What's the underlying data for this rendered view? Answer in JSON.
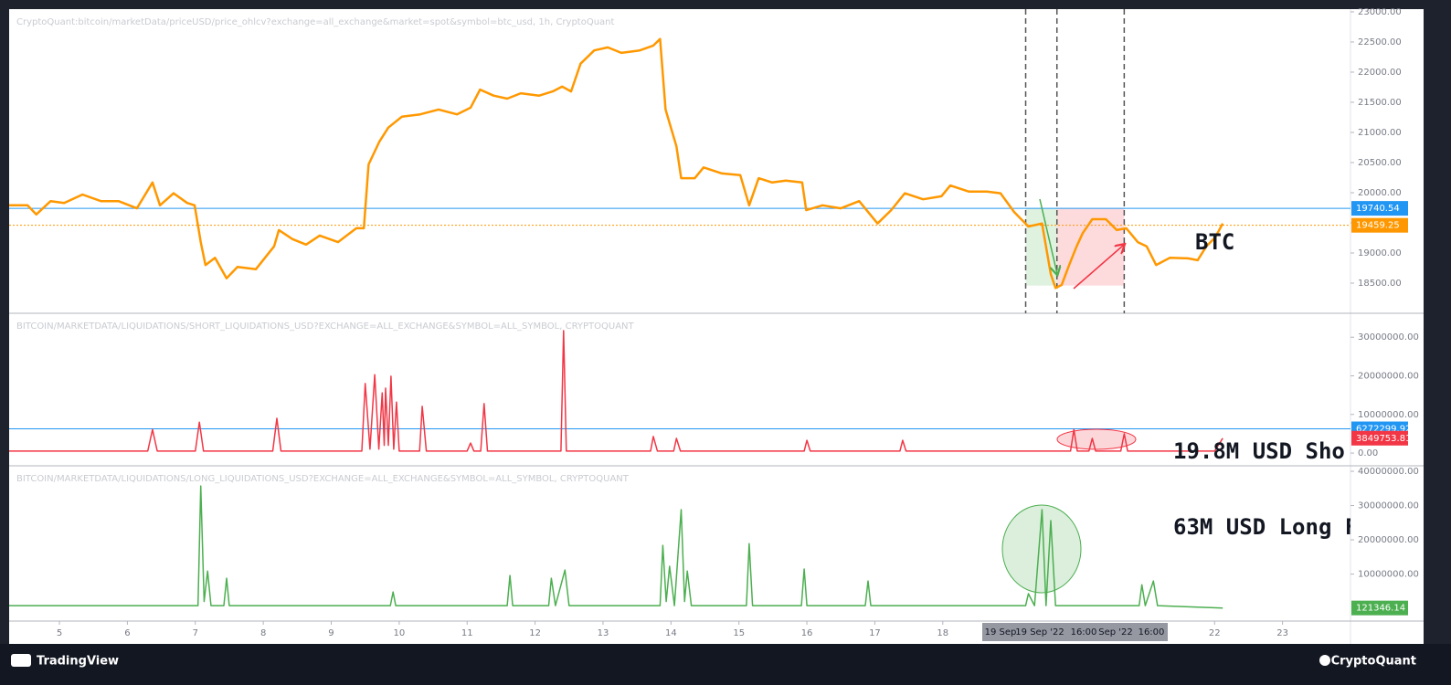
{
  "chart_data": [
    {
      "type": "line",
      "title": "CryptoQuant:bitcoin/marketData/priceUSD/price_ohlcv?exchange=all_exchange&market=spot&symbol=btc_usd, 1h, CryptoQuant",
      "annotation": "BTC",
      "xlim": [
        4.26,
        24
      ],
      "ylim": [
        18000,
        23045
      ],
      "yticks": [
        {
          "value": 18500,
          "label": "18500.00"
        },
        {
          "value": 19000,
          "label": "19000.00"
        },
        {
          "value": 19500,
          "label": "19500.00"
        },
        {
          "value": 20000,
          "label": "20000.00"
        },
        {
          "value": 20500,
          "label": "20500.00"
        },
        {
          "value": 21000,
          "label": "21000.00"
        },
        {
          "value": 21500,
          "label": "21500.00"
        },
        {
          "value": 22000,
          "label": "22000.00"
        },
        {
          "value": 22500,
          "label": "22500.00"
        },
        {
          "value": 23000,
          "label": "23000.00"
        }
      ],
      "vlines": [
        19.22,
        19.68,
        20.67
      ],
      "price_lines": [
        {
          "value": 19740.54,
          "color": "#2196f3",
          "style": "solid"
        },
        {
          "value": 19459.25,
          "color": "#ff9800",
          "style": "dotted"
        }
      ],
      "x": [
        4.26,
        4.53,
        4.66,
        4.87,
        5.07,
        5.34,
        5.61,
        5.87,
        6.14,
        6.37,
        6.48,
        6.68,
        6.88,
        6.99,
        7.08,
        7.15,
        7.29,
        7.46,
        7.62,
        7.89,
        8.16,
        8.23,
        8.43,
        8.63,
        8.83,
        9.1,
        9.37,
        9.48,
        9.55,
        9.71,
        9.84,
        10.04,
        10.31,
        10.58,
        10.85,
        11.05,
        11.19,
        11.39,
        11.59,
        11.79,
        12.06,
        12.26,
        12.4,
        12.53,
        12.67,
        12.87,
        13.07,
        13.27,
        13.54,
        13.74,
        13.84,
        13.92,
        14.08,
        14.15,
        14.35,
        14.48,
        14.75,
        15.02,
        15.15,
        15.29,
        15.49,
        15.69,
        15.93,
        15.99,
        16.23,
        16.5,
        16.77,
        17.04,
        17.24,
        17.44,
        17.71,
        17.98,
        18.11,
        18.38,
        18.65,
        18.85,
        19.05,
        19.26,
        19.46,
        19.59,
        19.66,
        19.75,
        19.86,
        19.97,
        20.06,
        20.2,
        20.4,
        20.56,
        20.7,
        20.87,
        21.0,
        21.14,
        21.34,
        21.61,
        21.75,
        21.88,
        22.01,
        22.12
      ],
      "series": [
        {
          "name": "BTC",
          "color": "#ff9800",
          "values": [
            19790,
            19790,
            19640,
            19860,
            19830,
            19970,
            19860,
            19860,
            19740,
            20170,
            19790,
            19990,
            19830,
            19790,
            19180,
            18800,
            18920,
            18580,
            18770,
            18730,
            19110,
            19380,
            19230,
            19140,
            19290,
            19180,
            19410,
            19410,
            20470,
            20850,
            21080,
            21260,
            21300,
            21380,
            21300,
            21410,
            21710,
            21610,
            21560,
            21650,
            21610,
            21680,
            21760,
            21680,
            22140,
            22360,
            22410,
            22320,
            22360,
            22440,
            22550,
            21380,
            20770,
            20240,
            20240,
            20420,
            20320,
            20290,
            19790,
            20240,
            20170,
            20200,
            20170,
            19710,
            19790,
            19740,
            19860,
            19490,
            19710,
            19990,
            19890,
            19940,
            20120,
            20020,
            20020,
            19990,
            19680,
            19440,
            19490,
            18650,
            18420,
            18470,
            18800,
            19110,
            19330,
            19560,
            19560,
            19380,
            19410,
            19180,
            19110,
            18800,
            18920,
            18910,
            18880,
            19110,
            19260,
            19490
          ]
        }
      ]
    },
    {
      "type": "line",
      "title": "BITCOIN/MARKETDATA/LIQUIDATIONS/SHORT_LIQUIDATIONS_USD?EXCHANGE=ALL_EXCHANGE&SYMBOL=ALL_SYMBOL, CRYPTOQUANT",
      "annotation": "19.8M USD Sho",
      "xlim": [
        4.26,
        24
      ],
      "ylim": [
        -3300000,
        36200000
      ],
      "yticks": [
        {
          "value": 0,
          "label": "0.00"
        },
        {
          "value": 10000000,
          "label": "10000000.00"
        },
        {
          "value": 20000000,
          "label": "20000000.00"
        },
        {
          "value": 30000000,
          "label": "30000000.00"
        }
      ],
      "price_lines": [
        {
          "value": 6272299.92,
          "color": "#2196f3",
          "style": "solid"
        },
        {
          "value": 3849753.81,
          "color": "#f23645",
          "style": "none"
        }
      ],
      "x": [
        4.26,
        6.3,
        6.37,
        6.44,
        7.0,
        7.06,
        7.12,
        8.14,
        8.2,
        8.26,
        9.45,
        9.5,
        9.57,
        9.64,
        9.7,
        9.75,
        9.78,
        9.8,
        9.84,
        9.88,
        9.92,
        9.96,
        10.0,
        10.3,
        10.34,
        10.4,
        11.0,
        11.05,
        11.1,
        11.2,
        11.25,
        11.3,
        12.38,
        12.42,
        12.46,
        13.7,
        13.74,
        13.8,
        14.04,
        14.08,
        14.14,
        15.96,
        16.0,
        16.05,
        17.37,
        17.41,
        17.46,
        19.88,
        19.93,
        19.98,
        20.15,
        20.2,
        20.25,
        20.62,
        20.67,
        20.72,
        22.0,
        22.12
      ],
      "series": [
        {
          "name": "Short liquidations",
          "color": "#f23645",
          "values": [
            500000,
            500000,
            6100000,
            500000,
            500000,
            8000000,
            500000,
            500000,
            9000000,
            500000,
            500000,
            18000000,
            1000000,
            20300000,
            1000000,
            15600000,
            2000000,
            16800000,
            2000000,
            19900000,
            1000000,
            13200000,
            500000,
            500000,
            12100000,
            500000,
            500000,
            2600000,
            500000,
            500000,
            12800000,
            500000,
            500000,
            31700000,
            500000,
            500000,
            4300000,
            500000,
            500000,
            3800000,
            500000,
            500000,
            3300000,
            500000,
            500000,
            3300000,
            500000,
            500000,
            6100000,
            500000,
            500000,
            3800000,
            500000,
            500000,
            5000000,
            500000,
            500000,
            3849753.81
          ]
        }
      ]
    },
    {
      "type": "line",
      "title": "BITCOIN/MARKETDATA/LIQUIDATIONS/LONG_LIQUIDATIONS_USD?EXCHANGE=ALL_EXCHANGE&SYMBOL=ALL_SYMBOL, CRYPTOQUANT",
      "annotation": "63M USD Long F",
      "xlim": [
        4.26,
        24
      ],
      "ylim": [
        -3700000,
        41600000
      ],
      "xticks": [
        5,
        6,
        7,
        8,
        9,
        10,
        11,
        12,
        13,
        14,
        15,
        16,
        17,
        18,
        22,
        23
      ],
      "crosshair_labels": [
        "19 Sep",
        "19 Sep '22",
        "16:00",
        "Sep '22",
        "16:00"
      ],
      "yticks": [
        {
          "value": 10000000,
          "label": "10000000.00"
        },
        {
          "value": 20000000,
          "label": "20000000.00"
        },
        {
          "value": 30000000,
          "label": "30000000.00"
        },
        {
          "value": 40000000,
          "label": "40000000.00"
        }
      ],
      "price_lines": [
        {
          "value": 121346.14,
          "color": "#4caf50",
          "style": "none"
        }
      ],
      "x": [
        4.26,
        7.04,
        7.08,
        7.13,
        7.18,
        7.23,
        7.42,
        7.46,
        7.5,
        9.87,
        9.91,
        9.95,
        11.59,
        11.63,
        11.67,
        12.2,
        12.24,
        12.3,
        12.44,
        12.5,
        13.84,
        13.88,
        13.93,
        13.98,
        14.05,
        14.15,
        14.2,
        14.24,
        14.3,
        15.11,
        15.15,
        15.2,
        15.92,
        15.96,
        16.0,
        16.86,
        16.9,
        16.94,
        19.22,
        19.26,
        19.35,
        19.46,
        19.52,
        19.59,
        19.66,
        20.89,
        20.93,
        20.98,
        21.1,
        21.16,
        22.12
      ],
      "series": [
        {
          "name": "Long liquidations",
          "color": "#4caf50",
          "values": [
            800000,
            800000,
            35700000,
            2000000,
            10900000,
            800000,
            800000,
            8800000,
            800000,
            800000,
            4800000,
            800000,
            800000,
            9600000,
            800000,
            800000,
            8800000,
            800000,
            11200000,
            800000,
            800000,
            18400000,
            2000000,
            12300000,
            800000,
            28800000,
            2000000,
            10900000,
            800000,
            800000,
            18900000,
            800000,
            800000,
            11500000,
            800000,
            800000,
            8000000,
            800000,
            800000,
            4300000,
            800000,
            28800000,
            800000,
            25600000,
            800000,
            800000,
            6900000,
            800000,
            8000000,
            800000,
            121346.14
          ]
        }
      ]
    }
  ],
  "footer": {
    "left": "TradingView",
    "right": "CryptoQuant"
  }
}
